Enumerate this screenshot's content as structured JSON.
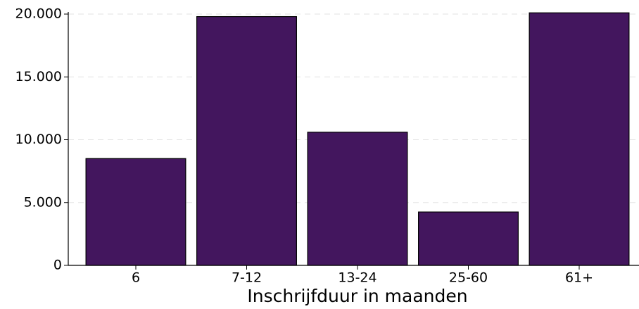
{
  "chart_data": {
    "type": "bar",
    "x_label": "Inschrijfduur in maanden",
    "categories": [
      "6",
      "7-12",
      "13-24",
      "25-60",
      "61+"
    ],
    "values": [
      8500,
      19800,
      10600,
      4250,
      20100
    ],
    "color": "#43165e",
    "ylim": [
      0,
      20000
    ],
    "yticks": [
      0,
      {
        "value": 5000,
        "label": "5.000"
      },
      {
        "value": 10000,
        "label": "10.000"
      },
      {
        "value": 15000,
        "label": "15.000"
      },
      {
        "value": 20000,
        "label": "20.000"
      }
    ],
    "grid": true
  }
}
